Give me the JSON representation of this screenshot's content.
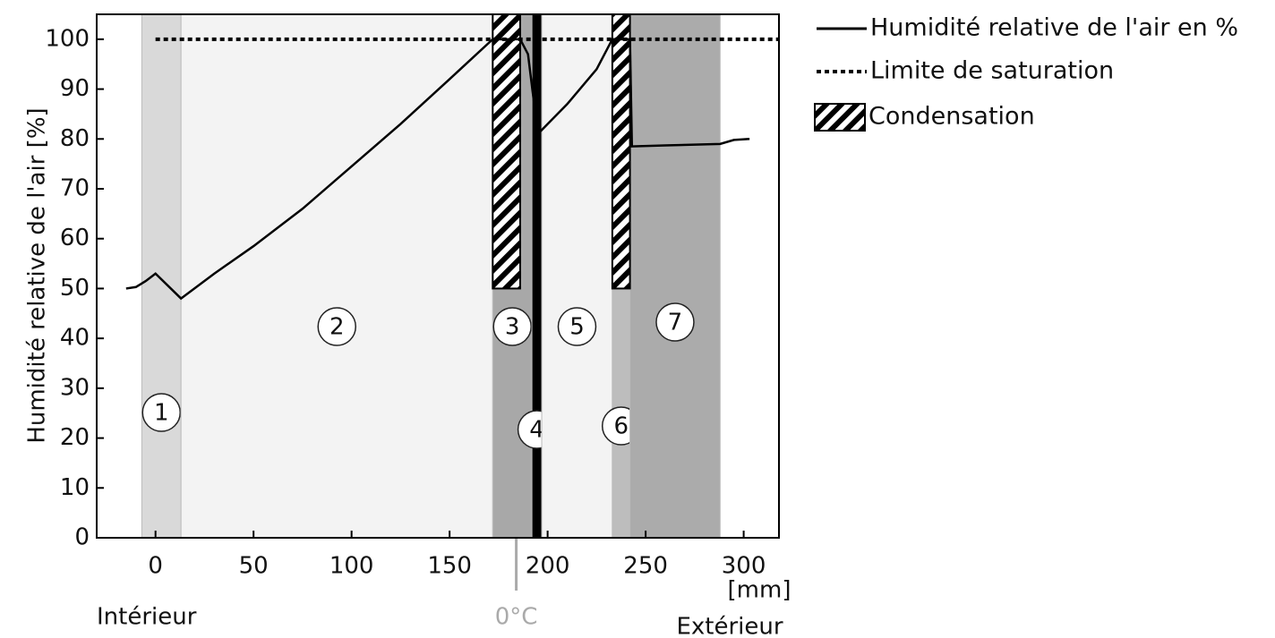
{
  "chart_data": {
    "type": "line",
    "y_label": "Humidité relative de l'air [%]",
    "x_unit_label": "[mm]",
    "x_annotations": {
      "interior": "Intérieur",
      "freezing": "0°C",
      "exterior": "Extérieur"
    },
    "freezing_x": 184,
    "xlim": [
      -30,
      318
    ],
    "ylim": [
      0,
      105
    ],
    "xticks": [
      0,
      50,
      100,
      150,
      200,
      250,
      300
    ],
    "yticks": [
      0,
      10,
      20,
      30,
      40,
      50,
      60,
      70,
      80,
      90,
      100
    ],
    "series": [
      {
        "name": "Humidité relative de l'air en %",
        "color": "#000000",
        "style": "solid",
        "x": [
          -15,
          -10,
          -5,
          0,
          13,
          30,
          50,
          75,
          100,
          125,
          150,
          172,
          186,
          190,
          195,
          210,
          225,
          233,
          242,
          243,
          260,
          288,
          295,
          303
        ],
        "values": [
          50,
          50.3,
          51.5,
          53,
          48,
          53,
          58.5,
          66,
          74.5,
          83,
          92,
          100,
          100,
          97,
          81,
          87,
          94,
          100,
          100,
          78.5,
          78.7,
          79,
          79.8,
          80
        ]
      },
      {
        "name": "Limite de saturation",
        "color": "#000000",
        "style": "dotted",
        "x": [
          0,
          318
        ],
        "values": [
          100,
          100
        ]
      }
    ],
    "condensation": {
      "name": "Condensation",
      "x0": [
        172,
        233
      ],
      "x1": [
        186,
        242
      ],
      "y0": [
        50,
        50
      ]
    },
    "layers": [
      {
        "label": "1",
        "x": [
          -7,
          13
        ],
        "color": "#d9d9d9"
      },
      {
        "label": "2",
        "x": [
          13,
          172
        ],
        "color": "#f3f3f3"
      },
      {
        "label": "3",
        "x": [
          172,
          192
        ],
        "color": "#a8a8a8"
      },
      {
        "label": "4",
        "x": [
          192,
          197
        ],
        "color": "#000000"
      },
      {
        "label": "5",
        "x": [
          197,
          233
        ],
        "color": "#f3f3f3"
      },
      {
        "label": "6",
        "x": [
          233,
          242
        ],
        "color": "#bdbdbd"
      },
      {
        "label": "7",
        "x": [
          242,
          288
        ],
        "color": "#ababab"
      }
    ]
  }
}
